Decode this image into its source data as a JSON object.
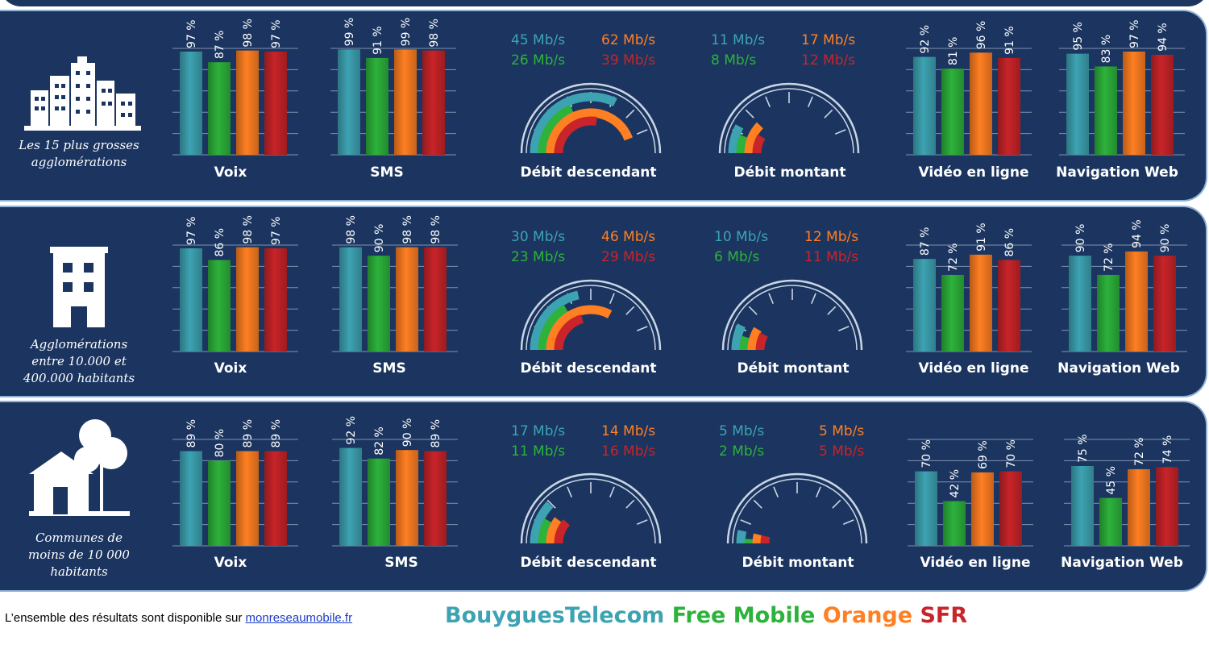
{
  "colors": {
    "bouygues": "#3da3b2",
    "free": "#2db23b",
    "orange": "#ff7f22",
    "sfr": "#c82429",
    "panel_bg": "#1b3560",
    "panel_border": "#8fb2d4"
  },
  "operators": [
    "Bouygues",
    "Free",
    "Orange",
    "SFR"
  ],
  "metrics": [
    "Voix",
    "SMS",
    "Débit descendant",
    "Débit montant",
    "Vidéo en ligne",
    "Navigation Web"
  ],
  "rows": [
    {
      "category_label": "Les 15 plus grosses\nagglomérations",
      "icon": "city-skyline-icon",
      "labels": [
        "Voix",
        "SMS",
        "Débit descendant",
        "Débit montant",
        "Vidéo en ligne",
        "Navigation Web"
      ]
    },
    {
      "category_label": "Agglomérations\nentre 10.000 et\n400.000 habitants",
      "icon": "building-icon",
      "labels": [
        "Voix",
        "SMS",
        "Débit descendant",
        "Débit montant",
        "Vidéo en ligne",
        "Navigation Web"
      ]
    },
    {
      "category_label": "Communes de\nmoins de 10 000\nhabitants",
      "icon": "house-tree-icon",
      "labels": [
        "Voix",
        "SMS",
        "Débit descendant",
        "Débit montant",
        "Vidéo en ligne",
        "Navigation Web"
      ]
    }
  ],
  "chart_data": [
    {
      "type": "bar",
      "group": "Les 15 plus grosses agglomérations",
      "unit": "%",
      "ylim": [
        0,
        100
      ],
      "series": [
        {
          "metric": "Voix",
          "values": [
            97,
            87,
            98,
            97
          ],
          "labels": [
            "97 %",
            "87 %",
            "98 %",
            "97 %"
          ]
        },
        {
          "metric": "SMS",
          "values": [
            99,
            91,
            99,
            98
          ],
          "labels": [
            "99 %",
            "91 %",
            "99 %",
            "98 %"
          ]
        },
        {
          "metric": "Vidéo en ligne",
          "values": [
            92,
            81,
            96,
            91
          ],
          "labels": [
            "92 %",
            "81 %",
            "96 %",
            "91 %"
          ]
        },
        {
          "metric": "Navigation Web",
          "values": [
            95,
            83,
            97,
            94
          ],
          "labels": [
            "95 %",
            "83 %",
            "97 %",
            "94 %"
          ]
        }
      ],
      "gauges": [
        {
          "metric": "Débit descendant",
          "max": 70,
          "values": [
            45,
            26,
            62,
            39
          ],
          "labels": [
            "45 Mb/s",
            "26 Mb/s",
            "62 Mb/s",
            "39 Mb/s"
          ]
        },
        {
          "metric": "Débit montant",
          "max": 70,
          "values": [
            11,
            8,
            17,
            12
          ],
          "labels": [
            "11 Mb/s",
            "8 Mb/s",
            "17 Mb/s",
            "12 Mb/s"
          ]
        }
      ]
    },
    {
      "type": "bar",
      "group": "Agglomérations entre 10.000 et 400.000 habitants",
      "unit": "%",
      "ylim": [
        0,
        100
      ],
      "series": [
        {
          "metric": "Voix",
          "values": [
            97,
            86,
            98,
            97
          ],
          "labels": [
            "97 %",
            "86 %",
            "98 %",
            "97 %"
          ]
        },
        {
          "metric": "SMS",
          "values": [
            98,
            90,
            98,
            98
          ],
          "labels": [
            "98 %",
            "90 %",
            "98 %",
            "98 %"
          ]
        },
        {
          "metric": "Vidéo en ligne",
          "values": [
            87,
            72,
            91,
            86
          ],
          "labels": [
            "87 %",
            "72 %",
            "91 %",
            "86 %"
          ]
        },
        {
          "metric": "Navigation Web",
          "values": [
            90,
            72,
            94,
            90
          ],
          "labels": [
            "90 %",
            "72 %",
            "94 %",
            "90 %"
          ]
        }
      ],
      "gauges": [
        {
          "metric": "Débit descendant",
          "max": 70,
          "values": [
            30,
            23,
            46,
            29
          ],
          "labels": [
            "30 Mb/s",
            "23 Mb/s",
            "46 Mb/s",
            "29 Mb/s"
          ]
        },
        {
          "metric": "Débit montant",
          "max": 70,
          "values": [
            10,
            6,
            12,
            11
          ],
          "labels": [
            "10 Mb/s",
            "6 Mb/s",
            "12 Mb/s",
            "11 Mb/s"
          ]
        }
      ]
    },
    {
      "type": "bar",
      "group": "Communes de moins de 10 000 habitants",
      "unit": "%",
      "ylim": [
        0,
        100
      ],
      "series": [
        {
          "metric": "Voix",
          "values": [
            89,
            80,
            89,
            89
          ],
          "labels": [
            "89 %",
            "80 %",
            "89 %",
            "89 %"
          ]
        },
        {
          "metric": "SMS",
          "values": [
            92,
            82,
            90,
            89
          ],
          "labels": [
            "92 %",
            "82 %",
            "90 %",
            "89 %"
          ]
        },
        {
          "metric": "Vidéo en ligne",
          "values": [
            70,
            42,
            69,
            70
          ],
          "labels": [
            "70 %",
            "42 %",
            "69 %",
            "70 %"
          ]
        },
        {
          "metric": "Navigation Web",
          "values": [
            75,
            45,
            72,
            74
          ],
          "labels": [
            "75 %",
            "45 %",
            "72 %",
            "74 %"
          ]
        }
      ],
      "gauges": [
        {
          "metric": "Débit descendant",
          "max": 70,
          "values": [
            17,
            11,
            14,
            16
          ],
          "labels": [
            "17 Mb/s",
            "11 Mb/s",
            "14 Mb/s",
            "16 Mb/s"
          ]
        },
        {
          "metric": "Débit montant",
          "max": 70,
          "values": [
            5,
            2,
            5,
            5
          ],
          "labels": [
            "5 Mb/s",
            "2 Mb/s",
            "5 Mb/s",
            "5 Mb/s"
          ]
        }
      ]
    }
  ],
  "footer": {
    "text": "L’ensemble des résultats sont disponible sur ",
    "link": "monreseaumobile.fr"
  },
  "legend": [
    {
      "name": "BouyguesTelecom",
      "color": "#3da3b2"
    },
    {
      "name": "Free Mobile",
      "color": "#2db23b"
    },
    {
      "name": "Orange",
      "color": "#ff7f22"
    },
    {
      "name": "SFR",
      "color": "#c82429"
    }
  ]
}
